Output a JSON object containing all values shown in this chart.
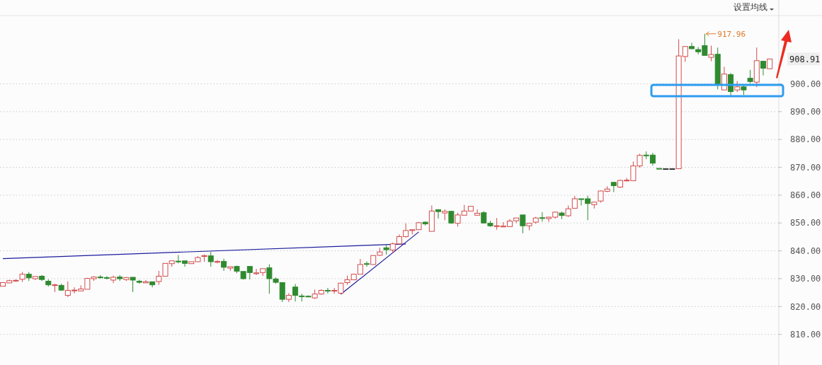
{
  "chart_data": {
    "type": "candlestick",
    "categories": [
      null,
      null,
      null,
      null,
      null,
      null,
      null,
      null,
      null,
      null,
      null,
      null,
      null,
      null,
      null,
      null,
      null,
      null,
      null,
      null,
      null,
      null,
      null,
      null,
      null,
      null,
      null,
      null,
      null,
      null,
      null,
      null,
      null,
      null,
      null,
      null,
      null,
      null,
      null,
      null,
      null,
      null,
      null,
      null,
      null,
      null,
      null,
      null,
      null,
      null,
      null,
      null,
      null,
      null,
      null,
      null,
      null,
      null,
      null,
      null,
      null,
      null,
      null,
      null,
      null,
      null,
      null,
      null,
      null,
      null,
      null,
      null,
      null,
      null,
      null,
      null,
      null,
      null,
      null,
      null,
      null,
      null,
      null,
      null,
      null,
      null,
      null,
      null,
      null,
      null,
      null,
      null,
      null,
      null,
      null,
      null,
      null,
      null,
      null,
      null,
      null,
      null,
      null,
      null,
      null,
      null,
      null,
      null,
      null,
      null,
      null,
      null,
      null,
      null,
      null,
      null,
      null,
      null,
      null
    ],
    "ohlc": [
      [
        827.3,
        828.6,
        827.3,
        828.6
      ],
      [
        828.5,
        829.6,
        828.4,
        829.3
      ],
      [
        829.3,
        829.8,
        828.9,
        829.4
      ],
      [
        829.8,
        832.4,
        828.8,
        831.6
      ],
      [
        831.6,
        832.4,
        829.2,
        830.3
      ],
      [
        830.0,
        830.8,
        829.5,
        830.8
      ],
      [
        830.9,
        831.3,
        829.2,
        829.7
      ],
      [
        829.1,
        829.8,
        827.2,
        827.8
      ],
      [
        827.6,
        828.2,
        825.2,
        827.8
      ],
      [
        827.6,
        828.2,
        825.6,
        825.9
      ],
      [
        824.0,
        829.0,
        823.4,
        825.8
      ],
      [
        825.8,
        826.9,
        824.7,
        825.9
      ],
      [
        825.6,
        827.6,
        825.6,
        826.3
      ],
      [
        826.2,
        830.3,
        826.2,
        830.1
      ],
      [
        830.0,
        830.9,
        829.2,
        830.6
      ],
      [
        830.6,
        831.3,
        830.0,
        830.5
      ],
      [
        830.4,
        830.9,
        829.7,
        830.3
      ],
      [
        829.5,
        831.1,
        828.4,
        830.5
      ],
      [
        830.6,
        831.3,
        829.2,
        830.0
      ],
      [
        829.7,
        830.6,
        829.2,
        830.4
      ],
      [
        830.5,
        830.5,
        825.2,
        829.5
      ],
      [
        829.1,
        829.6,
        828.2,
        828.7
      ],
      [
        828.5,
        829.5,
        828.5,
        828.9
      ],
      [
        828.9,
        828.9,
        826.9,
        827.8
      ],
      [
        829.0,
        832.8,
        827.8,
        830.9
      ],
      [
        830.9,
        835.5,
        830.9,
        835.5
      ],
      [
        835.4,
        836.4,
        834.3,
        836.4
      ],
      [
        836.3,
        838.5,
        835.5,
        836.1
      ],
      [
        836.4,
        836.4,
        834.3,
        835.5
      ],
      [
        835.4,
        836.1,
        835.4,
        836.1
      ],
      [
        836.1,
        838.1,
        836.1,
        837.6
      ],
      [
        838.0,
        838.7,
        836.1,
        838.3
      ],
      [
        838.2,
        839.6,
        834.3,
        836.1
      ],
      [
        835.9,
        836.7,
        835.5,
        836.2
      ],
      [
        836.2,
        837.2,
        832.8,
        834.1
      ],
      [
        833.8,
        834.3,
        832.8,
        834.3
      ],
      [
        834.4,
        834.7,
        832.0,
        832.7
      ],
      [
        832.6,
        832.6,
        829.7,
        830.0
      ],
      [
        834.4,
        834.4,
        829.7,
        832.2
      ],
      [
        831.8,
        833.5,
        831.3,
        832.1
      ],
      [
        832.2,
        833.6,
        831.0,
        833.6
      ],
      [
        833.9,
        835.2,
        824.6,
        830.0
      ],
      [
        829.9,
        830.5,
        828.2,
        828.7
      ],
      [
        828.6,
        828.6,
        821.6,
        822.6
      ],
      [
        822.6,
        824.8,
        821.6,
        824.0
      ],
      [
        827.0,
        828.1,
        821.8,
        824.0
      ],
      [
        823.8,
        824.6,
        821.8,
        823.6
      ],
      [
        823.7,
        824.0,
        823.4,
        823.5
      ],
      [
        823.1,
        826.1,
        822.7,
        824.5
      ],
      [
        824.5,
        826.2,
        824.2,
        825.8
      ],
      [
        825.8,
        826.7,
        824.7,
        825.6
      ],
      [
        825.6,
        826.7,
        824.6,
        825.8
      ],
      [
        824.8,
        828.6,
        824.4,
        828.4
      ],
      [
        828.6,
        831.1,
        827.8,
        829.6
      ],
      [
        829.6,
        831.8,
        829.5,
        831.6
      ],
      [
        831.6,
        837.1,
        831.6,
        835.1
      ],
      [
        835.4,
        836.2,
        834.3,
        835.3
      ],
      [
        835.1,
        838.3,
        835.1,
        838.3
      ],
      [
        838.4,
        841.1,
        838.2,
        839.6
      ],
      [
        841.1,
        842.1,
        838.7,
        840.4
      ],
      [
        840.3,
        843.0,
        839.2,
        842.5
      ],
      [
        842.5,
        845.9,
        842.5,
        845.1
      ],
      [
        845.1,
        849.9,
        844.8,
        847.3
      ],
      [
        847.3,
        847.6,
        845.9,
        847.6
      ],
      [
        847.6,
        850.4,
        847.6,
        850.1
      ],
      [
        850.3,
        850.6,
        849.1,
        849.7
      ],
      [
        847.0,
        856.3,
        847.0,
        854.3
      ],
      [
        854.8,
        854.9,
        851.6,
        854.1
      ],
      [
        853.6,
        854.9,
        851.0,
        854.2
      ],
      [
        854.2,
        854.3,
        849.7,
        850.0
      ],
      [
        849.9,
        853.7,
        848.7,
        852.9
      ],
      [
        852.8,
        856.5,
        852.8,
        854.3
      ],
      [
        854.3,
        856.0,
        854.3,
        856.0
      ],
      [
        852.8,
        854.9,
        852.8,
        853.5
      ],
      [
        853.7,
        854.3,
        850.0,
        850.0
      ],
      [
        849.9,
        850.8,
        848.6,
        849.0
      ],
      [
        848.8,
        851.8,
        847.6,
        849.0
      ],
      [
        848.6,
        850.3,
        848.6,
        848.9
      ],
      [
        848.7,
        851.4,
        848.7,
        850.7
      ],
      [
        850.8,
        851.8,
        850.0,
        851.8
      ],
      [
        852.9,
        852.9,
        846.3,
        849.0
      ],
      [
        849.0,
        850.1,
        847.4,
        849.9
      ],
      [
        850.3,
        852.2,
        849.7,
        851.8
      ],
      [
        851.9,
        853.9,
        850.5,
        851.7
      ],
      [
        851.6,
        852.2,
        850.4,
        852.1
      ],
      [
        852.1,
        854.1,
        851.6,
        853.9
      ],
      [
        853.6,
        854.1,
        851.4,
        852.7
      ],
      [
        852.6,
        856.3,
        852.2,
        855.1
      ],
      [
        855.3,
        859.7,
        855.3,
        858.7
      ],
      [
        858.7,
        858.7,
        856.3,
        858.6
      ],
      [
        858.7,
        859.8,
        851.0,
        857.0
      ],
      [
        856.6,
        857.7,
        855.2,
        857.5
      ],
      [
        857.9,
        861.7,
        857.3,
        861.5
      ],
      [
        861.4,
        863.2,
        861.1,
        862.2
      ],
      [
        864.6,
        864.7,
        861.1,
        863.4
      ],
      [
        862.9,
        865.6,
        862.6,
        865.3
      ],
      [
        865.3,
        866.2,
        864.9,
        865.4
      ],
      [
        865.2,
        872.1,
        865.2,
        870.5
      ],
      [
        870.5,
        874.9,
        869.9,
        874.3
      ],
      [
        874.4,
        875.7,
        872.9,
        874.3
      ],
      [
        874.4,
        875.2,
        870.6,
        871.5
      ],
      [
        869.6,
        869.6,
        869.5,
        869.5
      ],
      [
        869.5,
        869.5,
        869.5,
        869.5
      ],
      [
        869.5,
        869.5,
        869.5,
        869.5
      ],
      [
        869.5,
        916.0,
        869.5,
        910.0
      ],
      [
        909.8,
        913.4,
        907.9,
        913.4
      ],
      [
        913.4,
        914.7,
        912.4,
        912.6
      ],
      [
        912.3,
        913.2,
        910.6,
        911.5
      ],
      [
        913.7,
        917.96,
        910.2,
        910.2
      ],
      [
        909.5,
        913.7,
        908.1,
        910.5
      ],
      [
        910.6,
        913.0,
        898.0,
        899.9
      ],
      [
        897.8,
        906.1,
        897.8,
        903.5
      ],
      [
        903.3,
        903.9,
        895.3,
        897.2
      ],
      [
        897.8,
        901.0,
        897.0,
        898.9
      ],
      [
        898.9,
        899.7,
        896.0,
        897.8
      ],
      [
        902.0,
        905.0,
        900.2,
        900.8
      ],
      [
        900.6,
        913.0,
        898.8,
        908.3
      ],
      [
        908.1,
        908.1,
        903.0,
        905.6
      ],
      [
        905.4,
        908.91,
        905.4,
        908.91
      ]
    ],
    "series": [
      {
        "type": "line",
        "color": "#1a1a9a",
        "values": [
          837.2,
          null,
          null,
          null,
          null,
          null,
          null,
          null,
          null,
          null,
          null,
          null,
          null,
          null,
          null,
          null,
          null,
          null,
          null,
          null,
          null,
          null,
          null,
          null,
          null,
          null,
          null,
          null,
          null,
          null,
          null,
          null,
          null,
          null,
          null,
          null,
          null,
          null,
          null,
          null,
          null,
          null,
          null,
          null,
          null,
          null,
          null,
          null,
          null,
          null,
          null,
          null,
          null,
          null,
          null,
          null,
          null,
          null,
          null,
          null,
          null,
          null,
          842.5,
          null,
          null,
          null,
          null,
          null,
          null,
          null,
          null,
          null,
          null,
          null,
          null,
          null,
          null,
          null,
          null,
          null,
          null,
          null,
          null,
          null,
          null,
          null,
          null,
          null,
          null,
          null,
          null,
          null,
          null,
          null,
          null,
          null,
          null,
          null,
          null,
          null,
          null,
          null,
          null,
          null,
          null,
          null,
          null,
          null,
          null,
          null,
          null,
          null,
          null,
          null,
          null,
          null,
          null,
          null,
          null
        ]
      },
      {
        "type": "line",
        "color": "#1a1a9a",
        "values": [
          null,
          null,
          null,
          null,
          null,
          null,
          null,
          null,
          null,
          null,
          null,
          null,
          null,
          null,
          null,
          null,
          null,
          null,
          null,
          null,
          null,
          null,
          null,
          null,
          null,
          null,
          null,
          null,
          null,
          null,
          null,
          null,
          null,
          null,
          null,
          null,
          null,
          null,
          null,
          null,
          null,
          null,
          null,
          null,
          null,
          null,
          null,
          null,
          null,
          null,
          null,
          null,
          824.4,
          null,
          null,
          null,
          null,
          null,
          null,
          null,
          null,
          null,
          null,
          null,
          846.8,
          null,
          null,
          null,
          null,
          null,
          null,
          null,
          null,
          null,
          null,
          null,
          null,
          null,
          null,
          null,
          null,
          null,
          null,
          null,
          null,
          null,
          null,
          null,
          null,
          null,
          null,
          null,
          null,
          null,
          null,
          null,
          null,
          null,
          null,
          null,
          null,
          null,
          null,
          null,
          null,
          null,
          null,
          null,
          null,
          null,
          null,
          null,
          null,
          null,
          null,
          null,
          null,
          null,
          null
        ]
      }
    ],
    "ylim": [
      799,
      924
    ],
    "yticks": [
      {
        "value": 810,
        "label": "810.00"
      },
      {
        "value": 820,
        "label": "820.00"
      },
      {
        "value": 830,
        "label": "830.00"
      },
      {
        "value": 840,
        "label": "840.00"
      },
      {
        "value": 850,
        "label": "850.00"
      },
      {
        "value": 860,
        "label": "860.00"
      },
      {
        "value": 870,
        "label": "870.00"
      },
      {
        "value": 880,
        "label": "880.00"
      },
      {
        "value": 890,
        "label": "890.00"
      },
      {
        "value": 900,
        "label": "900.00"
      }
    ],
    "grid": "y",
    "annotations": [
      "设置均线",
      "917.96",
      "908.91"
    ]
  }
}
